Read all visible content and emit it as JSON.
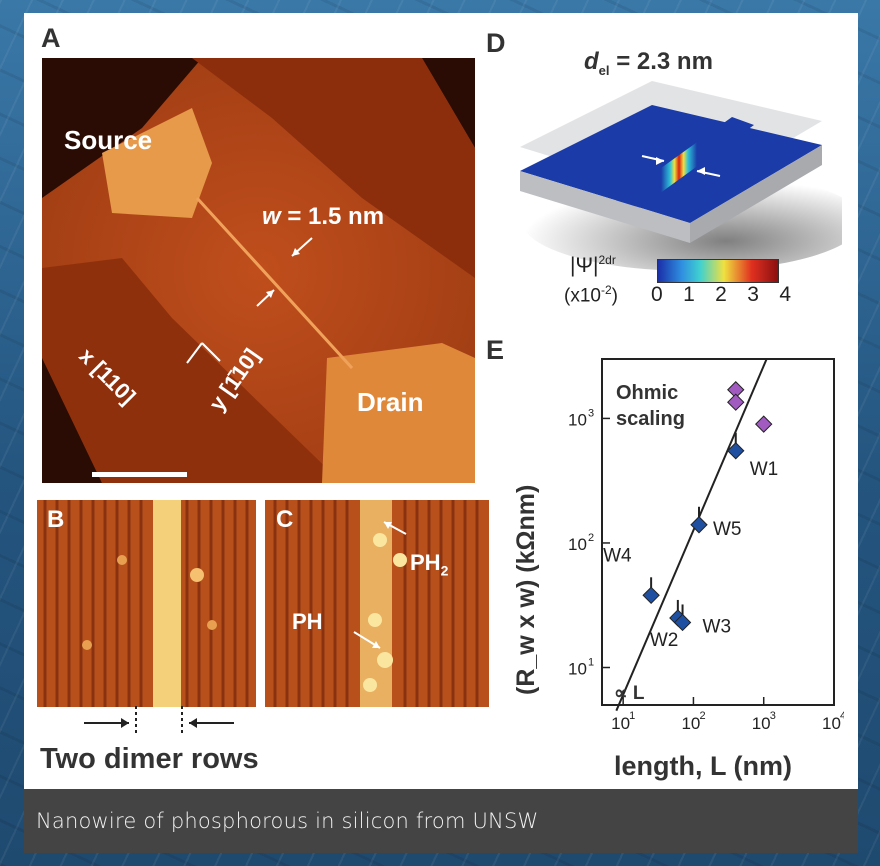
{
  "caption": "Nanowire of phosphorous in silicon from UNSW",
  "panels": {
    "a": {
      "letter": "A",
      "source": "Source",
      "drain": "Drain",
      "w_label": "= 1.5 nm",
      "w_var": "w",
      "x_axis": "x [110]",
      "y_axis": "y [1̄10]"
    },
    "b": {
      "letter": "B",
      "note": "Two dimer rows"
    },
    "c": {
      "letter": "C",
      "ph": "PH",
      "ph2": "PH",
      "ph2_sub": "2"
    },
    "d": {
      "letter": "D",
      "title_var": "d",
      "title_sub": "el",
      "title_value": "= 2.3 nm",
      "cbar_label": "|Ψ|",
      "cbar_label2": "2dr",
      "cbar_unit": "(x10",
      "cbar_unit_exp": "-2",
      "cbar_ticks": [
        "0",
        "1",
        "2",
        "3",
        "4"
      ]
    },
    "e": {
      "letter": "E",
      "annotation": "Ohmic",
      "annotation2": "scaling",
      "fit_label": "∝ L",
      "xlabel": "length, L (nm)",
      "ylabel": "(R_w x w)  (kΩnm)",
      "xticks": [
        "10",
        "10",
        "10",
        "10"
      ],
      "xtick_exp": [
        "1",
        "2",
        "3",
        "4"
      ],
      "yticks": [
        "10",
        "10",
        "10"
      ],
      "ytick_exp": [
        "1",
        "2",
        "3"
      ],
      "wire_labels": [
        "W1",
        "W2",
        "W3",
        "W4",
        "W5"
      ]
    }
  },
  "colors": {
    "caption_bg": "#444444",
    "stm_orange": "#c8501a",
    "diamond_blue": "#1f4fa0",
    "diamond_purple": "#a05ac0"
  },
  "chart_data": {
    "type": "scatter",
    "xlabel": "length, L (nm)",
    "ylabel": "(Rw x w) (kΩnm)",
    "xscale": "log",
    "yscale": "log",
    "xlim": [
      5,
      10000
    ],
    "ylim": [
      5,
      3000
    ],
    "series": [
      {
        "name": "W1",
        "values": [
          {
            "x": 400,
            "y": 550
          }
        ]
      },
      {
        "name": "W2",
        "values": [
          {
            "x": 60,
            "y": 25
          }
        ]
      },
      {
        "name": "W3",
        "values": [
          {
            "x": 70,
            "y": 23
          }
        ]
      },
      {
        "name": "W4",
        "values": [
          {
            "x": 25,
            "y": 38
          }
        ]
      },
      {
        "name": "W5",
        "values": [
          {
            "x": 120,
            "y": 140
          }
        ]
      },
      {
        "name": "",
        "values": [
          {
            "x": 400,
            "y": 1700
          },
          {
            "x": 400,
            "y": 1350
          },
          {
            "x": 1000,
            "y": 900
          }
        ]
      }
    ],
    "fit": {
      "label": "∝ L",
      "x": [
        8,
        1100
      ],
      "y": [
        4.5,
        3000
      ]
    }
  }
}
